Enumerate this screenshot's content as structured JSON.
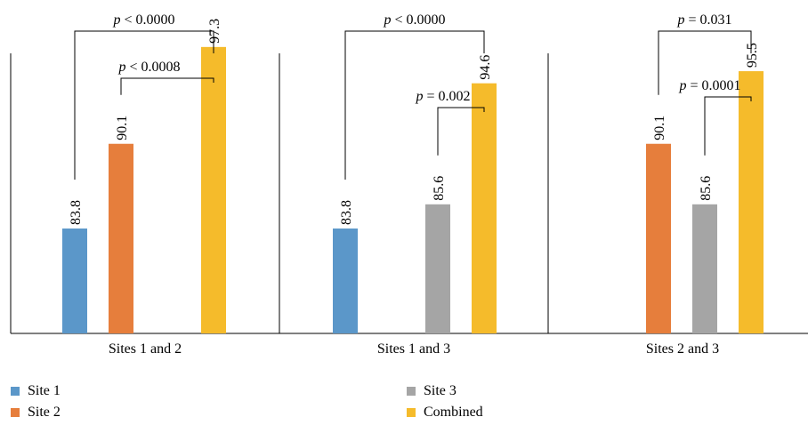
{
  "chart_data": {
    "type": "bar",
    "groups": [
      {
        "label": "Sites 1 and 2",
        "bars": [
          {
            "series": "Site 1",
            "value": 83.8,
            "label": "83.8"
          },
          {
            "series": "Site 2",
            "value": 90.1,
            "label": "90.1"
          },
          {
            "series": "Combined",
            "value": 97.3,
            "label": "97.3"
          }
        ],
        "comparisons": [
          {
            "from": "Site 1",
            "to": "Combined",
            "text_p": "p",
            "text_rest": " < 0.0000"
          },
          {
            "from": "Site 2",
            "to": "Combined",
            "text_p": "p",
            "text_rest": " < 0.0008"
          }
        ]
      },
      {
        "label": "Sites 1 and 3",
        "bars": [
          {
            "series": "Site 1",
            "value": 83.8,
            "label": "83.8"
          },
          {
            "series": "Site 3",
            "value": 85.6,
            "label": "85.6"
          },
          {
            "series": "Combined",
            "value": 94.6,
            "label": "94.6"
          }
        ],
        "comparisons": [
          {
            "from": "Site 1",
            "to": "Combined",
            "text_p": "p",
            "text_rest": " < 0.0000"
          },
          {
            "from": "Site 3",
            "to": "Combined",
            "text_p": "p",
            "text_rest": " = 0.002"
          }
        ]
      },
      {
        "label": "Sites 2 and 3",
        "bars": [
          {
            "series": "Site 2",
            "value": 90.1,
            "label": "90.1"
          },
          {
            "series": "Site 3",
            "value": 85.6,
            "label": "85.6"
          },
          {
            "series": "Combined",
            "value": 95.5,
            "label": "95.5"
          }
        ],
        "comparisons": [
          {
            "from": "Site 2",
            "to": "Combined",
            "text_p": "p",
            "text_rest": " = 0.031"
          },
          {
            "from": "Site 3",
            "to": "Combined",
            "text_p": "p",
            "text_rest": " = 0.0001"
          }
        ]
      }
    ],
    "series": [
      {
        "name": "Site 1",
        "color": "#5b97c9"
      },
      {
        "name": "Site 2",
        "color": "#e67e3c"
      },
      {
        "name": "Site 3",
        "color": "#a5a5a5"
      },
      {
        "name": "Combined",
        "color": "#f5bb2b"
      }
    ],
    "ylim": [
      76,
      100
    ],
    "grid": false,
    "legend": "bottom"
  }
}
